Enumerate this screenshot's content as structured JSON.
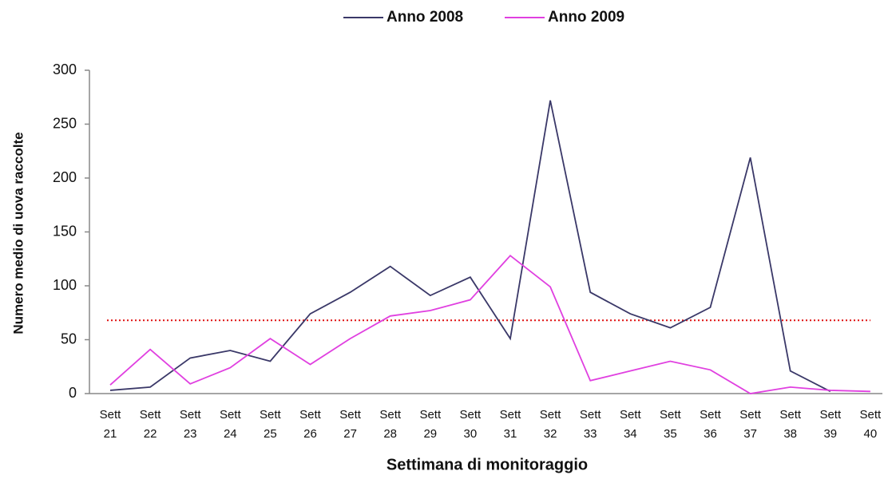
{
  "chart_data": {
    "type": "line",
    "x_label": "Settimana di monitoraggio",
    "y_label": "Numero medio di uova raccolte",
    "categories": [
      "Sett 21",
      "Sett 22",
      "Sett 23",
      "Sett 24",
      "Sett 25",
      "Sett 26",
      "Sett 27",
      "Sett 28",
      "Sett 29",
      "Sett 30",
      "Sett 31",
      "Sett 32",
      "Sett 33",
      "Sett 34",
      "Sett 35",
      "Sett 36",
      "Sett 37",
      "Sett 38",
      "Sett 39",
      "Sett 40"
    ],
    "series": [
      {
        "name": "Anno 2008",
        "color": "#3a3868",
        "values": [
          3,
          6,
          33,
          40,
          30,
          74,
          94,
          118,
          91,
          108,
          51,
          272,
          94,
          74,
          61,
          80,
          219,
          21,
          2,
          null
        ]
      },
      {
        "name": "Anno 2009",
        "color": "#e040e0",
        "values": [
          8,
          41,
          9,
          24,
          51,
          27,
          51,
          72,
          77,
          87,
          128,
          99,
          12,
          21,
          30,
          22,
          0,
          6,
          3,
          2
        ]
      }
    ],
    "reference_line": {
      "value": 68,
      "color": "#e01010"
    },
    "ylim": [
      0,
      300
    ],
    "yticks": [
      0,
      50,
      100,
      150,
      200,
      250,
      300
    ],
    "legend": "top"
  }
}
